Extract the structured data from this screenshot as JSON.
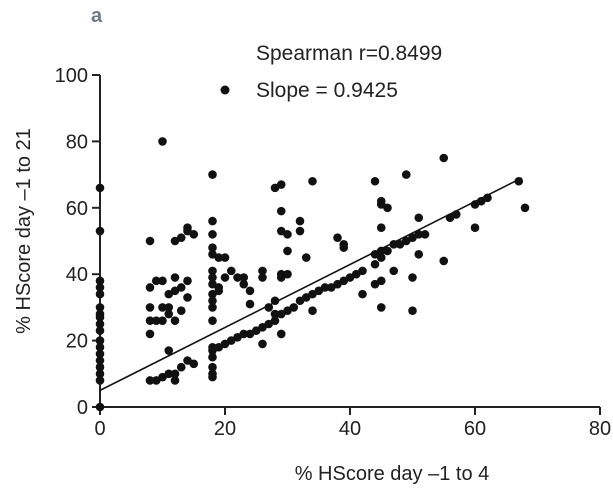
{
  "chart_data": {
    "type": "scatter",
    "panel_label": "a",
    "title": "",
    "xlabel": "% HScore day –1 to 4",
    "ylabel": "% HScore day –1 to 21",
    "xlim": [
      0,
      80
    ],
    "ylim": [
      0,
      100
    ],
    "xticks": [
      "0",
      "20",
      "40",
      "60",
      "80"
    ],
    "yticks": [
      "0",
      "20",
      "40",
      "60",
      "80",
      "100"
    ],
    "grid": false,
    "legend_text": "Slope = 0.9425",
    "annotations": [
      "Spearman r=0.8499",
      "Slope = 0.9425"
    ],
    "colors": {
      "points": "#111111",
      "line": "#111111",
      "axes": "#222222"
    },
    "regression_line": {
      "x": [
        0,
        67.5
      ],
      "y": [
        5,
        69
      ]
    },
    "points": [
      [
        0,
        66
      ],
      [
        0,
        53
      ],
      [
        0,
        38
      ],
      [
        0,
        36
      ],
      [
        0,
        34
      ],
      [
        0,
        30
      ],
      [
        0,
        28
      ],
      [
        0,
        27
      ],
      [
        0,
        25
      ],
      [
        0,
        23
      ],
      [
        0,
        20
      ],
      [
        0,
        18
      ],
      [
        0,
        16
      ],
      [
        0,
        14
      ],
      [
        0,
        12
      ],
      [
        0,
        10
      ],
      [
        0,
        8
      ],
      [
        0,
        0
      ],
      [
        8,
        50
      ],
      [
        8,
        36
      ],
      [
        8,
        30
      ],
      [
        8,
        26
      ],
      [
        8,
        22
      ],
      [
        8,
        8
      ],
      [
        9,
        38
      ],
      [
        9,
        26
      ],
      [
        9,
        8
      ],
      [
        10,
        80
      ],
      [
        10,
        38
      ],
      [
        10,
        30
      ],
      [
        10,
        26
      ],
      [
        10,
        9
      ],
      [
        11,
        34
      ],
      [
        11,
        30
      ],
      [
        11,
        28
      ],
      [
        11,
        17
      ],
      [
        11,
        10
      ],
      [
        12,
        50
      ],
      [
        12,
        39
      ],
      [
        12,
        35
      ],
      [
        12,
        26
      ],
      [
        12,
        10
      ],
      [
        12,
        8
      ],
      [
        13,
        51
      ],
      [
        13,
        36
      ],
      [
        13,
        29
      ],
      [
        13,
        12
      ],
      [
        14,
        54
      ],
      [
        14,
        53
      ],
      [
        14,
        38
      ],
      [
        14,
        33
      ],
      [
        14,
        14
      ],
      [
        15,
        52
      ],
      [
        15,
        13
      ],
      [
        18,
        70
      ],
      [
        18,
        56
      ],
      [
        18,
        52
      ],
      [
        18,
        48
      ],
      [
        18,
        46
      ],
      [
        18,
        41
      ],
      [
        18,
        39
      ],
      [
        18,
        37
      ],
      [
        18,
        34
      ],
      [
        18,
        32
      ],
      [
        18,
        30
      ],
      [
        18,
        26
      ],
      [
        18,
        18
      ],
      [
        18,
        17
      ],
      [
        18,
        15
      ],
      [
        18,
        12
      ],
      [
        18,
        10
      ],
      [
        18,
        9
      ],
      [
        19,
        45
      ],
      [
        19,
        36
      ],
      [
        19,
        35
      ],
      [
        19,
        18
      ],
      [
        20,
        45
      ],
      [
        20,
        39
      ],
      [
        20,
        19
      ],
      [
        21,
        41
      ],
      [
        21,
        20
      ],
      [
        22,
        39
      ],
      [
        22,
        21
      ],
      [
        23,
        39
      ],
      [
        23,
        37
      ],
      [
        23,
        22
      ],
      [
        24,
        35
      ],
      [
        24,
        31
      ],
      [
        24,
        22
      ],
      [
        25,
        23
      ],
      [
        26,
        41
      ],
      [
        26,
        39
      ],
      [
        26,
        24
      ],
      [
        26,
        19
      ],
      [
        27,
        30
      ],
      [
        27,
        25
      ],
      [
        28,
        66
      ],
      [
        28,
        32
      ],
      [
        28,
        26
      ],
      [
        28,
        28
      ],
      [
        29,
        67
      ],
      [
        29,
        59
      ],
      [
        29,
        53
      ],
      [
        29,
        40
      ],
      [
        29,
        39
      ],
      [
        29,
        28
      ],
      [
        29,
        22
      ],
      [
        30,
        52
      ],
      [
        30,
        47
      ],
      [
        30,
        40
      ],
      [
        30,
        29
      ],
      [
        31,
        30
      ],
      [
        32,
        56
      ],
      [
        32,
        53
      ],
      [
        32,
        32
      ],
      [
        33,
        45
      ],
      [
        33,
        33
      ],
      [
        34,
        68
      ],
      [
        34,
        34
      ],
      [
        34,
        29
      ],
      [
        35,
        35
      ],
      [
        36,
        36
      ],
      [
        37,
        36
      ],
      [
        38,
        37
      ],
      [
        38,
        51
      ],
      [
        39,
        38
      ],
      [
        39,
        48
      ],
      [
        39,
        49
      ],
      [
        40,
        39
      ],
      [
        41,
        40
      ],
      [
        42,
        41
      ],
      [
        42,
        34
      ],
      [
        44,
        68
      ],
      [
        44,
        46
      ],
      [
        44,
        43
      ],
      [
        44,
        37
      ],
      [
        45,
        62
      ],
      [
        45,
        61
      ],
      [
        45,
        54
      ],
      [
        45,
        47
      ],
      [
        45,
        45
      ],
      [
        45,
        38
      ],
      [
        45,
        30
      ],
      [
        46,
        60
      ],
      [
        46,
        47
      ],
      [
        47,
        49
      ],
      [
        47,
        41
      ],
      [
        48,
        49
      ],
      [
        49,
        50
      ],
      [
        49,
        70
      ],
      [
        50,
        51
      ],
      [
        50,
        39
      ],
      [
        50,
        29
      ],
      [
        51,
        57
      ],
      [
        51,
        52
      ],
      [
        51,
        46
      ],
      [
        52,
        52
      ],
      [
        55,
        75
      ],
      [
        55,
        44
      ],
      [
        56,
        57
      ],
      [
        57,
        58
      ],
      [
        60,
        61
      ],
      [
        60,
        54
      ],
      [
        61,
        62
      ],
      [
        62,
        63
      ],
      [
        67,
        68
      ],
      [
        68,
        60
      ]
    ]
  }
}
